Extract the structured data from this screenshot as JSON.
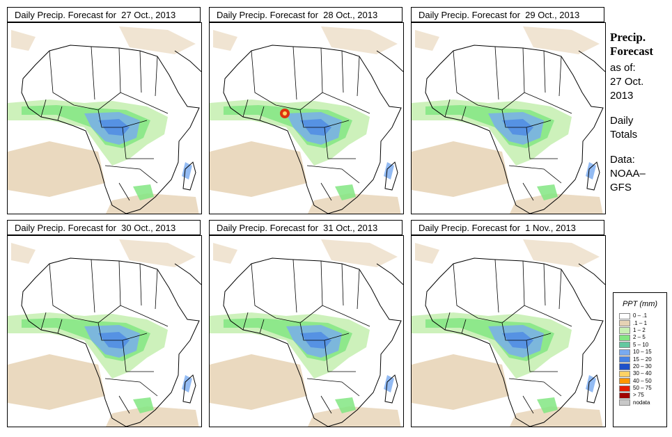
{
  "panels": [
    {
      "title": "Daily Precip. Forecast for  27 Oct., 2013"
    },
    {
      "title": "Daily Precip. Forecast for  28 Oct., 2013"
    },
    {
      "title": "Daily Precip. Forecast for  29 Oct., 2013"
    },
    {
      "title": "Daily Precip. Forecast for  30 Oct., 2013"
    },
    {
      "title": "Daily Precip. Forecast for  31 Oct., 2013"
    },
    {
      "title": "Daily Precip. Forecast for  1 Nov., 2013"
    }
  ],
  "sidebar": {
    "heading1": "Precip.",
    "heading2": "Forecast",
    "asof1": "as of:",
    "asof2": "27 Oct.",
    "asof3": "2013",
    "period1": "Daily",
    "period2": "Totals",
    "source1": "Data:",
    "source2": "NOAA–",
    "source3": "GFS"
  },
  "legend": {
    "title": "PPT (mm)",
    "items": [
      {
        "label": "0 – .1",
        "color": "#ffffff"
      },
      {
        "label": ".1 – 1",
        "color": "#e6d2b4"
      },
      {
        "label": "1 – 2",
        "color": "#c8f0b4"
      },
      {
        "label": "2 – 5",
        "color": "#82e682"
      },
      {
        "label": "5 – 10",
        "color": "#64c8a0"
      },
      {
        "label": "10 – 15",
        "color": "#78aaf0"
      },
      {
        "label": "15 – 20",
        "color": "#4682e6"
      },
      {
        "label": "20 – 30",
        "color": "#1e50c8"
      },
      {
        "label": "30 – 40",
        "color": "#ffd264"
      },
      {
        "label": "40 – 50",
        "color": "#ff9600"
      },
      {
        "label": "50 – 75",
        "color": "#e61e00"
      },
      {
        "label": "> 75",
        "color": "#a00000"
      },
      {
        "label": "nodata",
        "color": "#c8c8c8"
      }
    ]
  }
}
